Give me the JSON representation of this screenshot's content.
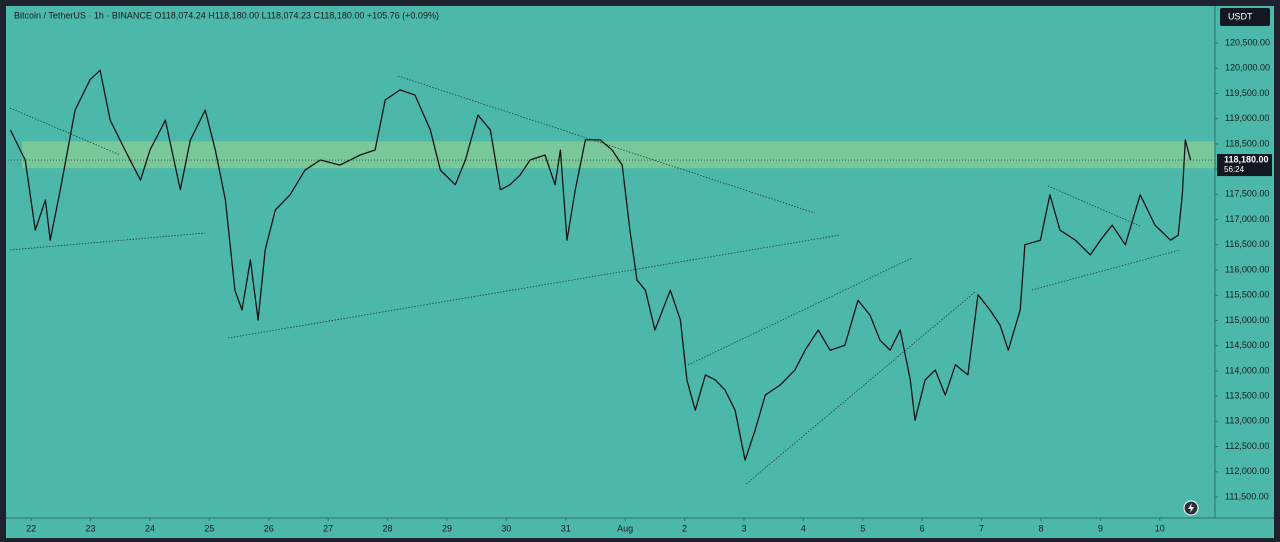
{
  "chart_data": {
    "type": "line",
    "header": "Bitcoin / TetherUS · 1h · BINANCE  O118,074.24 H118,180.00 L118,074.23 C118,180.00 +105.76 (+0.09%)",
    "currency": "USDT",
    "last_price_label": "118,180.00",
    "countdown": "56:24",
    "color": "#141414",
    "zone": [
      118020,
      118550
    ],
    "zone_color": "#9fd68c",
    "x": [
      -0.35,
      -0.1,
      0.07,
      0.24,
      0.32,
      0.49,
      0.74,
      0.99,
      1.16,
      1.33,
      1.58,
      1.84,
      2.0,
      2.26,
      2.51,
      2.68,
      2.93,
      3.1,
      3.27,
      3.43,
      3.55,
      3.69,
      3.82,
      3.94,
      4.11,
      4.36,
      4.61,
      4.87,
      5.2,
      5.54,
      5.79,
      5.96,
      6.21,
      6.46,
      6.72,
      6.89,
      7.14,
      7.31,
      7.52,
      7.73,
      7.9,
      8.06,
      8.23,
      8.4,
      8.65,
      8.82,
      8.91,
      9.02,
      9.16,
      9.33,
      9.58,
      9.78,
      9.95,
      10.08,
      10.2,
      10.34,
      10.5,
      10.76,
      10.93,
      11.04,
      11.18,
      11.35,
      11.52,
      11.68,
      11.85,
      12.02,
      12.19,
      12.36,
      12.61,
      12.86,
      13.03,
      13.25,
      13.45,
      13.7,
      13.92,
      14.12,
      14.29,
      14.46,
      14.63,
      14.8,
      14.88,
      15.05,
      15.22,
      15.39,
      15.56,
      15.77,
      15.94,
      16.14,
      16.31,
      16.45,
      16.65,
      16.73,
      16.99,
      17.15,
      17.32,
      17.58,
      17.83,
      18.0,
      18.2,
      18.42,
      18.67,
      18.92,
      19.18,
      19.31,
      19.38,
      19.43,
      19.52
    ],
    "values": [
      118775,
      118180,
      116790,
      117390,
      116590,
      117590,
      119170,
      119770,
      119960,
      118970,
      118380,
      117780,
      118380,
      118970,
      117590,
      118580,
      119170,
      118380,
      117390,
      115600,
      115210,
      116200,
      115010,
      116400,
      117190,
      117490,
      117980,
      118180,
      118080,
      118280,
      118380,
      119370,
      119570,
      119470,
      118780,
      117980,
      117690,
      118180,
      119070,
      118780,
      117590,
      117690,
      117880,
      118180,
      118280,
      117690,
      118380,
      116590,
      117590,
      118580,
      118580,
      118380,
      118080,
      116790,
      115800,
      115600,
      114810,
      115600,
      115010,
      113820,
      113220,
      113920,
      113820,
      113620,
      113220,
      112230,
      112830,
      113520,
      113720,
      114020,
      114410,
      114810,
      114410,
      114510,
      115400,
      115110,
      114610,
      114410,
      114810,
      113820,
      113020,
      113820,
      114020,
      113520,
      114120,
      113920,
      115510,
      115210,
      114910,
      114410,
      115210,
      116500,
      116590,
      117490,
      116790,
      116590,
      116300,
      116590,
      116890,
      116500,
      117490,
      116890,
      116590,
      116690,
      117490,
      118580,
      118180
    ],
    "xlim": [
      -0.39,
      19.93
    ],
    "ylim": [
      111084,
      121194
    ],
    "xticks": [
      {
        "value": 0,
        "label": "22"
      },
      {
        "value": 1,
        "label": "23"
      },
      {
        "value": 2,
        "label": "24"
      },
      {
        "value": 3,
        "label": "25"
      },
      {
        "value": 4,
        "label": "26"
      },
      {
        "value": 5,
        "label": "27"
      },
      {
        "value": 6,
        "label": "28"
      },
      {
        "value": 7,
        "label": "29"
      },
      {
        "value": 8,
        "label": "30"
      },
      {
        "value": 9,
        "label": "31"
      },
      {
        "value": 10,
        "label": "Aug"
      },
      {
        "value": 11,
        "label": "2"
      },
      {
        "value": 12,
        "label": "3"
      },
      {
        "value": 13,
        "label": "4"
      },
      {
        "value": 14,
        "label": "5"
      },
      {
        "value": 15,
        "label": "6"
      },
      {
        "value": 16,
        "label": "7"
      },
      {
        "value": 17,
        "label": "8"
      },
      {
        "value": 18,
        "label": "9"
      },
      {
        "value": 19,
        "label": "10"
      }
    ],
    "yticks": [
      {
        "value": 111500,
        "label": "111,500.00"
      },
      {
        "value": 112000,
        "label": "112,000.00"
      },
      {
        "value": 112500,
        "label": "112,500.00"
      },
      {
        "value": 113000,
        "label": "113,000.00"
      },
      {
        "value": 113500,
        "label": "113,500.00"
      },
      {
        "value": 114000,
        "label": "114,000.00"
      },
      {
        "value": 114500,
        "label": "114,500.00"
      },
      {
        "value": 115000,
        "label": "115,000.00"
      },
      {
        "value": 115500,
        "label": "115,500.00"
      },
      {
        "value": 116000,
        "label": "116,000.00"
      },
      {
        "value": 116500,
        "label": "116,500.00"
      },
      {
        "value": 117000,
        "label": "117,000.00"
      },
      {
        "value": 117500,
        "label": "117,500.00"
      },
      {
        "value": 118000,
        "label": "118,000.00"
      },
      {
        "value": 118500,
        "label": "118,500.00"
      },
      {
        "value": 119000,
        "label": "119,000.00"
      },
      {
        "value": 119500,
        "label": "119,500.00"
      },
      {
        "value": 120000,
        "label": "120,000.00"
      },
      {
        "value": 120500,
        "label": "120,500.00"
      }
    ]
  }
}
